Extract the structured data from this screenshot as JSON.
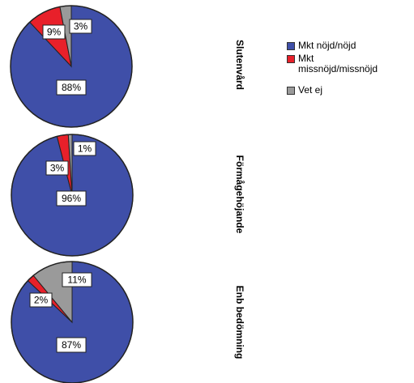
{
  "chart_data": {
    "type": "pie",
    "categories": [
      "Mkt nöjd/nöjd",
      "Mkt missnöjd/missnöjd",
      "Vet ej"
    ],
    "colors": [
      "#3f4fa8",
      "#e8202a",
      "#9a9a9a"
    ],
    "pies": [
      {
        "name": "Slutenvård",
        "values": [
          88,
          9,
          3
        ],
        "labels": [
          "88%",
          "9%",
          "3%"
        ]
      },
      {
        "name": "Förmågehöjande",
        "values": [
          96,
          3,
          1
        ],
        "labels": [
          "96%",
          "3%",
          "1%"
        ]
      },
      {
        "name": "Enb bedömning",
        "values": [
          87,
          2,
          11
        ],
        "labels": [
          "87%",
          "2%",
          "11%"
        ]
      }
    ],
    "legend": {
      "position": "right",
      "entries": [
        "Mkt nöjd/nöjd",
        "Mkt missnöjd/missnöjd",
        "Vet ej"
      ]
    }
  }
}
